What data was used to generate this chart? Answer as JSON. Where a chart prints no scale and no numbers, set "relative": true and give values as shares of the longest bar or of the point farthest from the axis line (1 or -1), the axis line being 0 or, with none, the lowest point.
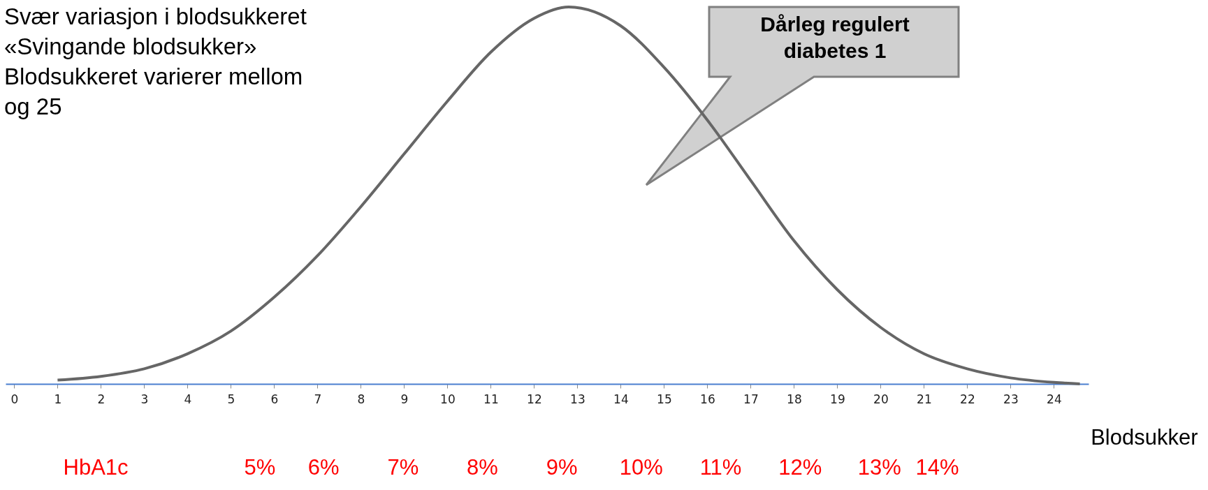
{
  "chart_data": {
    "type": "line",
    "relative": true,
    "xlabel": "Blodsukker",
    "x2label": "HbA1c",
    "annotations": [
      "Svær variasjon i blodsukkeret",
      "«Svingande blodsukker»",
      "Blodsukkeret varierer mellom",
      "og 25",
      "Dårleg regulert diabetes 1"
    ],
    "xlim": [
      -0.2,
      24.8
    ],
    "xticks": [
      0,
      1,
      2,
      3,
      4,
      5,
      6,
      7,
      8,
      9,
      10,
      11,
      12,
      13,
      14,
      15,
      16,
      17,
      18,
      19,
      20,
      21,
      22,
      23,
      24
    ],
    "x2lim": [
      5,
      14
    ],
    "x2ticks": [
      {
        "value": 5,
        "label": "5%"
      },
      {
        "value": 6,
        "label": "6%"
      },
      {
        "value": 7,
        "label": "7%"
      },
      {
        "value": 8,
        "label": "8%"
      },
      {
        "value": 9,
        "label": "9%"
      },
      {
        "value": 10,
        "label": "10%"
      },
      {
        "value": 11,
        "label": "11%"
      },
      {
        "value": 12,
        "label": "12%"
      },
      {
        "value": 13,
        "label": "13%"
      },
      {
        "value": 14,
        "label": "14%"
      }
    ],
    "x": [
      1,
      2,
      3,
      4,
      5,
      6,
      7,
      8,
      9,
      10,
      11,
      12,
      12.8,
      14,
      15,
      16,
      17,
      18,
      19,
      20,
      21,
      22,
      23,
      24,
      24.6
    ],
    "series": [
      {
        "color": "#666666",
        "values": [
          0.01,
          0.02,
          0.04,
          0.08,
          0.14,
          0.23,
          0.34,
          0.47,
          0.61,
          0.75,
          0.88,
          0.97,
          1,
          0.95,
          0.84,
          0.7,
          0.54,
          0.38,
          0.25,
          0.15,
          0.08,
          0.04,
          0.016,
          0.004,
          0
        ]
      }
    ]
  }
}
